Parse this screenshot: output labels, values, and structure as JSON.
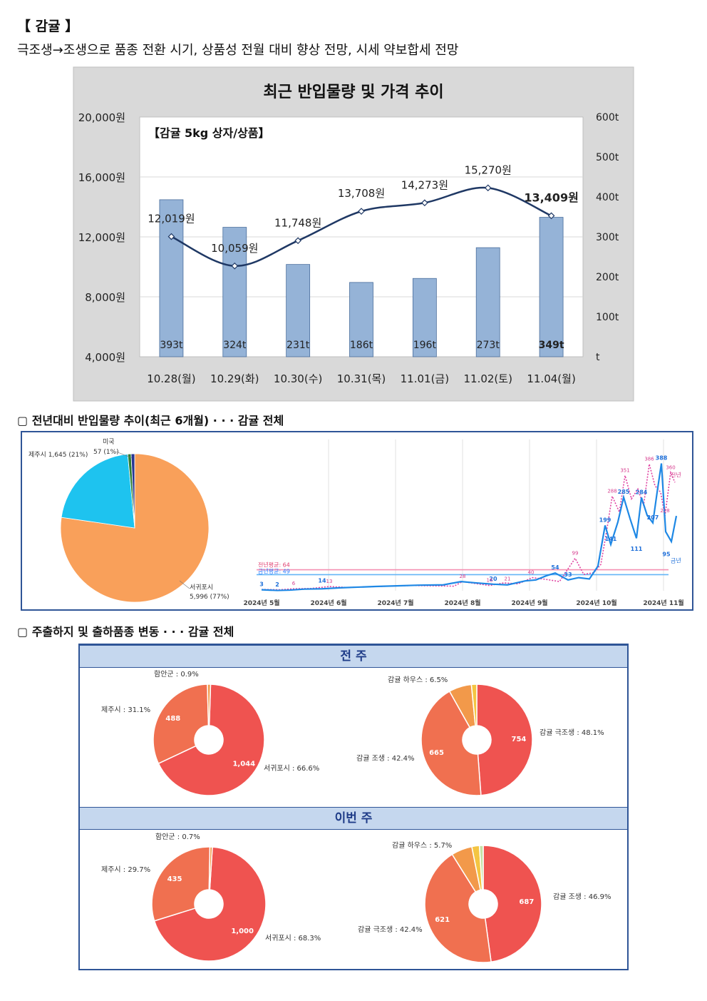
{
  "header": {
    "title": "【 감귤 】",
    "summary": "극조생→조생으로 품종 전환 시기, 상품성 전월 대비 향상 전망, 시세 약보합세 전망"
  },
  "colors": {
    "bar": "#95b3d7",
    "price_line": "#1f3864",
    "pie_orange": "#f9a05a",
    "pie_cyan": "#1ec3ef",
    "line_this_year": "#1e88e5",
    "line_last_year": "#e040a0",
    "donut_red": "#ef5350",
    "donut_orange": "#f07050"
  },
  "chart_data": [
    {
      "id": "main",
      "type": "bar+line",
      "title": "최근 반입물량 및 가격 추이",
      "inner_label": "【감귤 5kg 상자/상품】",
      "categories": [
        "10.28(월)",
        "10.29(화)",
        "10.30(수)",
        "10.31(목)",
        "11.01(금)",
        "11.02(토)",
        "11.04(월)"
      ],
      "volume_values": [
        393,
        324,
        231,
        186,
        196,
        273,
        349
      ],
      "volume_labels": [
        "393t",
        "324t",
        "231t",
        "186t",
        "196t",
        "273t",
        "349t"
      ],
      "price_values": [
        12019,
        10059,
        11748,
        13708,
        14273,
        15270,
        13409
      ],
      "price_labels": [
        "12,019원",
        "10,059원",
        "11,748원",
        "13,708원",
        "14,273원",
        "15,270원",
        "13,409원"
      ],
      "left_ticks": [
        "4,000원",
        "8,000원",
        "12,000원",
        "16,000원",
        "20,000원"
      ],
      "right_ticks": [
        "t",
        "100t",
        "200t",
        "300t",
        "400t",
        "500t",
        "600t"
      ],
      "left_range": [
        4000,
        20000
      ],
      "right_range": [
        0,
        600
      ]
    },
    {
      "id": "origin_pie",
      "type": "pie",
      "section_title": "▢ 전년대비 반입물량 추이(최근 6개월) · · · 감귤 전체",
      "slices": [
        {
          "label": "서귀포시",
          "text": "5,996 (77%)",
          "value": 5996,
          "color": "#f9a05a"
        },
        {
          "label": "제주시",
          "text": "제주시 1,645 (21%)",
          "value": 1645,
          "color": "#1ec3ef"
        },
        {
          "label": "미국",
          "text": "57 (1%)",
          "value": 57,
          "color": "#2e7d32"
        },
        {
          "label": "",
          "text": "",
          "value": 60,
          "color": "#283593"
        }
      ]
    },
    {
      "id": "trend_line",
      "type": "line",
      "x_ticks": [
        "2024년 5월",
        "2024년 6월",
        "2024년 7월",
        "2024년 8월",
        "2024년 9월",
        "2024년 10월",
        "2024년 11월"
      ],
      "avg_last_year": "전년평균: 64",
      "avg_this_year": "금년평균: 49",
      "series_labels": {
        "last_year": "전년",
        "this_year": "금년"
      },
      "point_labels": [
        "3",
        "2",
        "6",
        "13",
        "14",
        "28",
        "16",
        "20",
        "21",
        "40",
        "54",
        "99",
        "33",
        "199",
        "288",
        "351",
        "285",
        "284",
        "386",
        "388",
        "360",
        "141",
        "111",
        "207",
        "95",
        "228"
      ]
    },
    {
      "id": "donuts",
      "type": "pie",
      "section_title": "▢ 주출하지 및 출하품종 변동 · · · 감귤 전체",
      "prev_week": {
        "band": "전 주",
        "origin": [
          {
            "label": "서귀포시 : 66.6%",
            "value": 1044,
            "text": "1,044"
          },
          {
            "label": "제주시 : 31.1%",
            "value": 488,
            "text": "488"
          },
          {
            "label": "함안군 : 0.9%",
            "value": 14,
            "text": ""
          }
        ],
        "variety": [
          {
            "label": "감귤 극조생 : 48.1%",
            "value": 754,
            "text": "754"
          },
          {
            "label": "감귤 조생 : 42.4%",
            "value": 665,
            "text": "665"
          },
          {
            "label": "감귤 하우스 : 6.5%",
            "value": 102,
            "text": ""
          },
          {
            "label": "",
            "value": 24,
            "text": ""
          }
        ]
      },
      "this_week": {
        "band": "이번 주",
        "origin": [
          {
            "label": "서귀포시 : 68.3%",
            "value": 1000,
            "text": "1,000"
          },
          {
            "label": "제주시 : 29.7%",
            "value": 435,
            "text": "435"
          },
          {
            "label": "함안군 : 0.7%",
            "value": 10,
            "text": ""
          }
        ],
        "variety": [
          {
            "label": "감귤 조생 : 46.9%",
            "value": 687,
            "text": "687"
          },
          {
            "label": "감귤 극조생 : 42.4%",
            "value": 621,
            "text": "621"
          },
          {
            "label": "감귤 하우스 : 5.7%",
            "value": 83,
            "text": ""
          },
          {
            "label": "",
            "value": 30,
            "text": ""
          },
          {
            "label": "",
            "value": 15,
            "text": ""
          }
        ]
      }
    }
  ]
}
